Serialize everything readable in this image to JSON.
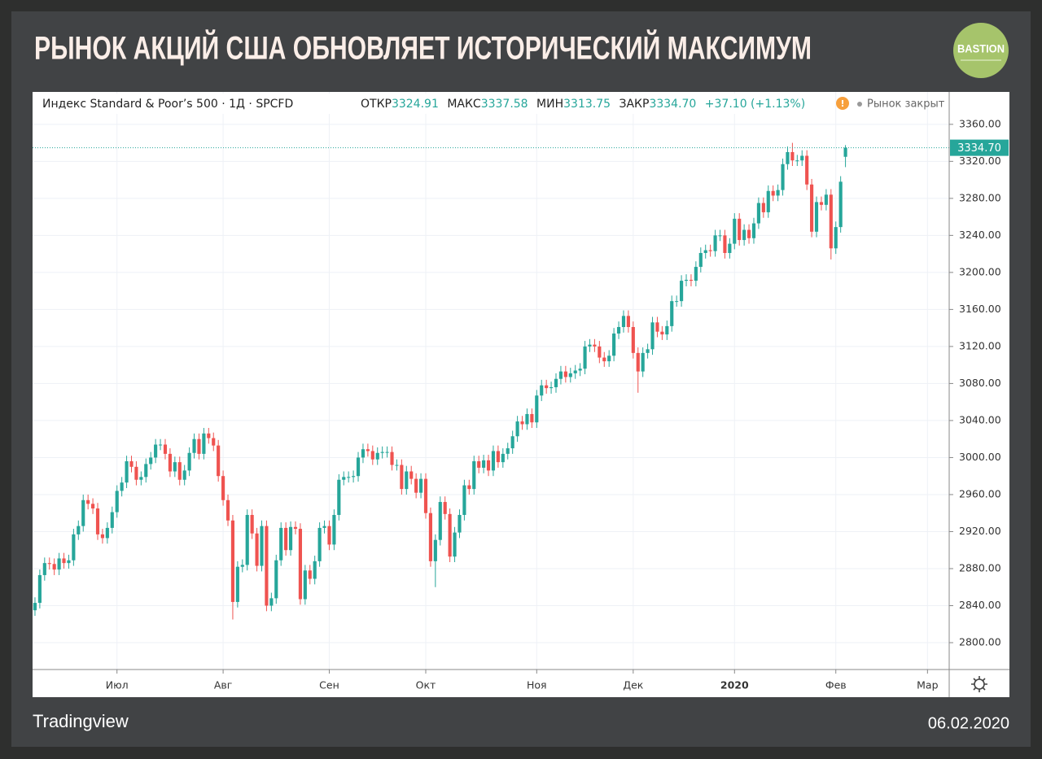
{
  "title": "РЫНОК АКЦИЙ США ОБНОВЛЯЕТ ИСТОРИЧЕСКИЙ МАКСИМУМ",
  "logo": "BASTION",
  "source": "Tradingview",
  "date": "06.02.2020",
  "chart_data": {
    "type": "candlestick",
    "legend": {
      "symbol": "Индекс Standard & Poor’s 500 · 1Д · SPCFD",
      "open_label": "ОТКР",
      "high_label": "МАКС",
      "low_label": "МИН",
      "close_label": "ЗАКР",
      "close_text": "3334.70",
      "change": "+37.10 (+1.13%)",
      "status": "Рынок закрыт"
    },
    "up_color": "#26a69a",
    "down_color": "#ef5350",
    "grid": true,
    "open": [
      2835,
      2843,
      2873,
      2886,
      2885,
      2879,
      2891,
      2886,
      2889,
      2917,
      2926,
      2954,
      2950,
      2945,
      2917,
      2913,
      2924,
      2941,
      2964,
      2973,
      2996,
      2990,
      2976,
      2979,
      2993,
      3000,
      3014,
      3014,
      3004,
      2985,
      2995,
      2976,
      2986,
      3005,
      3020,
      3004,
      3026,
      3021,
      3013,
      2980,
      2954,
      2932,
      2844,
      2882,
      2884,
      2938,
      2918,
      2883,
      2926,
      2840,
      2848,
      2889,
      2924,
      2900,
      2925,
      2923,
      2847,
      2878,
      2869,
      2888,
      2924,
      2926,
      2906,
      2938,
      2976,
      2979,
      2979,
      2980,
      3000,
      3009,
      3007,
      2998,
      3005,
      3006,
      3006,
      2992,
      2992,
      2966,
      2985,
      2977,
      2962,
      2977,
      2940,
      2888,
      2911,
      2952,
      2939,
      2893,
      2919,
      2938,
      2970,
      2966,
      2996,
      2989,
      2997,
      2986,
      3007,
      2995,
      3004,
      3010,
      3023,
      3039,
      3036,
      3047,
      3038,
      3067,
      3078,
      3075,
      3076,
      3085,
      3093,
      3087,
      3091,
      3094,
      3096,
      3120,
      3122,
      3120,
      3108,
      3104,
      3110,
      3134,
      3141,
      3153,
      3141,
      3113,
      3093,
      3113,
      3117,
      3146,
      3136,
      3133,
      3142,
      3169,
      3169,
      3191,
      3192,
      3191,
      3206,
      3221,
      3224,
      3223,
      3240,
      3240,
      3221,
      3231,
      3258,
      3235,
      3246,
      3237,
      3253,
      3275,
      3265,
      3288,
      3283,
      3289,
      3317,
      3330,
      3321,
      3321,
      3326,
      3295,
      3244,
      3276,
      3273,
      3284,
      3226,
      3249,
      3324.91
    ],
    "high": [
      2849,
      2879,
      2892,
      2892,
      2891,
      2897,
      2897,
      2895,
      2923,
      2932,
      2960,
      2960,
      2956,
      2951,
      2923,
      2930,
      2947,
      2970,
      2979,
      3002,
      3002,
      2996,
      2985,
      2999,
      3006,
      3020,
      3020,
      3020,
      3010,
      3001,
      3001,
      2992,
      3011,
      3026,
      3026,
      3032,
      3032,
      3027,
      3019,
      2986,
      2960,
      2938,
      2888,
      2890,
      2944,
      2944,
      2924,
      2932,
      2932,
      2854,
      2895,
      2930,
      2930,
      2931,
      2931,
      2929,
      2884,
      2884,
      2894,
      2930,
      2932,
      2932,
      2944,
      2982,
      2985,
      2985,
      2986,
      3006,
      3015,
      3015,
      3013,
      3011,
      3012,
      3012,
      3012,
      2998,
      2998,
      2991,
      2991,
      2983,
      2983,
      2983,
      2946,
      2917,
      2958,
      2958,
      2945,
      2925,
      2944,
      2976,
      2976,
      3002,
      3002,
      3003,
      3003,
      3013,
      3013,
      3010,
      3016,
      3029,
      3045,
      3045,
      3053,
      3053,
      3073,
      3084,
      3084,
      3082,
      3091,
      3099,
      3099,
      3097,
      3100,
      3102,
      3126,
      3128,
      3128,
      3126,
      3114,
      3116,
      3140,
      3147,
      3159,
      3159,
      3147,
      3119,
      3119,
      3123,
      3152,
      3152,
      3142,
      3148,
      3175,
      3175,
      3197,
      3198,
      3198,
      3212,
      3227,
      3230,
      3230,
      3246,
      3246,
      3246,
      3237,
      3264,
      3264,
      3252,
      3252,
      3259,
      3281,
      3281,
      3294,
      3294,
      3295,
      3323,
      3336,
      3340,
      3327,
      3332,
      3332,
      3301,
      3282,
      3282,
      3290,
      3290,
      3255,
      3304,
      3337.58
    ],
    "low": [
      2829,
      2837,
      2867,
      2879,
      2873,
      2873,
      2880,
      2880,
      2883,
      2911,
      2920,
      2944,
      2939,
      2911,
      2907,
      2907,
      2918,
      2935,
      2958,
      2967,
      2984,
      2970,
      2970,
      2973,
      2987,
      2994,
      3008,
      2998,
      2979,
      2979,
      2970,
      2970,
      2980,
      2999,
      2998,
      2998,
      3015,
      3007,
      2974,
      2948,
      2926,
      2825,
      2838,
      2876,
      2878,
      2912,
      2877,
      2877,
      2834,
      2834,
      2842,
      2883,
      2894,
      2894,
      2917,
      2841,
      2841,
      2863,
      2863,
      2882,
      2918,
      2900,
      2900,
      2932,
      2970,
      2973,
      2973,
      2974,
      2994,
      3001,
      2992,
      2992,
      2999,
      3000,
      2986,
      2986,
      2960,
      2960,
      2971,
      2956,
      2956,
      2934,
      2882,
      2860,
      2905,
      2933,
      2887,
      2887,
      2913,
      2932,
      2960,
      2960,
      2983,
      2983,
      2980,
      2980,
      2989,
      2989,
      2998,
      3004,
      3017,
      3030,
      3030,
      3032,
      3032,
      3061,
      3069,
      3069,
      3070,
      3079,
      3081,
      3081,
      3085,
      3088,
      3090,
      3114,
      3114,
      3102,
      3098,
      3098,
      3104,
      3128,
      3135,
      3135,
      3107,
      3070,
      3087,
      3107,
      3111,
      3130,
      3127,
      3127,
      3136,
      3163,
      3163,
      3185,
      3185,
      3185,
      3200,
      3215,
      3217,
      3217,
      3234,
      3215,
      3215,
      3225,
      3229,
      3229,
      3231,
      3231,
      3247,
      3259,
      3259,
      3277,
      3277,
      3283,
      3311,
      3315,
      3315,
      3315,
      3289,
      3238,
      3238,
      3267,
      3267,
      3214,
      3220,
      3243,
      3313.75
    ],
    "close": [
      2843,
      2873,
      2886,
      2885,
      2879,
      2891,
      2886,
      2889,
      2917,
      2926,
      2954,
      2950,
      2945,
      2917,
      2913,
      2924,
      2941,
      2964,
      2973,
      2996,
      2990,
      2976,
      2979,
      2993,
      3000,
      3014,
      3014,
      3004,
      2985,
      2995,
      2976,
      2986,
      3005,
      3020,
      3004,
      3026,
      3021,
      3013,
      2980,
      2954,
      2932,
      2844,
      2882,
      2884,
      2938,
      2918,
      2883,
      2926,
      2840,
      2848,
      2889,
      2924,
      2900,
      2925,
      2923,
      2847,
      2878,
      2869,
      2888,
      2924,
      2926,
      2906,
      2938,
      2976,
      2979,
      2979,
      2980,
      3000,
      3009,
      3007,
      2998,
      3005,
      3006,
      3006,
      2992,
      2992,
      2966,
      2985,
      2977,
      2962,
      2977,
      2940,
      2888,
      2911,
      2952,
      2939,
      2893,
      2919,
      2938,
      2970,
      2966,
      2996,
      2989,
      2997,
      2986,
      3007,
      2995,
      3004,
      3010,
      3023,
      3039,
      3036,
      3047,
      3038,
      3067,
      3078,
      3075,
      3076,
      3085,
      3093,
      3087,
      3091,
      3094,
      3096,
      3120,
      3122,
      3120,
      3108,
      3104,
      3110,
      3134,
      3141,
      3153,
      3141,
      3113,
      3093,
      3113,
      3117,
      3146,
      3136,
      3133,
      3142,
      3169,
      3169,
      3191,
      3192,
      3191,
      3206,
      3221,
      3224,
      3223,
      3240,
      3240,
      3221,
      3231,
      3258,
      3235,
      3246,
      3237,
      3253,
      3275,
      3265,
      3288,
      3283,
      3289,
      3317,
      3330,
      3321,
      3321,
      3326,
      3295,
      3244,
      3276,
      3273,
      3284,
      3226,
      3249,
      3298,
      3334.7
    ],
    "xlim": [
      -0.5,
      189.5
    ],
    "xticks": [
      {
        "value": 17,
        "label": "Июл"
      },
      {
        "value": 39,
        "label": "Авг"
      },
      {
        "value": 61,
        "label": "Сен"
      },
      {
        "value": 81,
        "label": "Окт"
      },
      {
        "value": 104,
        "label": "Ноя"
      },
      {
        "value": 124,
        "label": "Дек"
      },
      {
        "value": 145,
        "label": "2020"
      },
      {
        "value": 166,
        "label": "Фев"
      },
      {
        "value": 185,
        "label": "Мар"
      }
    ],
    "ylim": [
      2771,
      3395
    ],
    "yticks": [
      {
        "value": 2800,
        "label": "2800.00"
      },
      {
        "value": 2840,
        "label": "2840.00"
      },
      {
        "value": 2880,
        "label": "2880.00"
      },
      {
        "value": 2920,
        "label": "2920.00"
      },
      {
        "value": 2960,
        "label": "2960.00"
      },
      {
        "value": 3000,
        "label": "3000.00"
      },
      {
        "value": 3040,
        "label": "3040.00"
      },
      {
        "value": 3080,
        "label": "3080.00"
      },
      {
        "value": 3120,
        "label": "3120.00"
      },
      {
        "value": 3160,
        "label": "3160.00"
      },
      {
        "value": 3200,
        "label": "3200.00"
      },
      {
        "value": 3240,
        "label": "3240.00"
      },
      {
        "value": 3280,
        "label": "3280.00"
      },
      {
        "value": 3320,
        "label": "3320.00"
      },
      {
        "value": 3360,
        "label": "3360.00"
      }
    ]
  }
}
